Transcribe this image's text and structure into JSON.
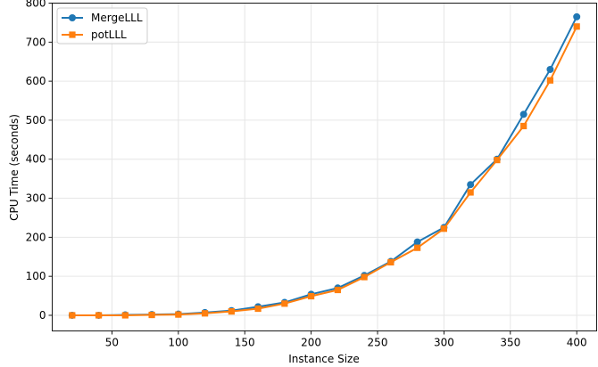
{
  "chart_data": {
    "type": "line",
    "title": "",
    "xlabel": "Instance Size",
    "ylabel": "CPU Time (seconds)",
    "xlim": [
      5,
      415
    ],
    "ylim": [
      -40,
      800
    ],
    "xticks": [
      50,
      100,
      150,
      200,
      250,
      300,
      350,
      400
    ],
    "yticks": [
      0,
      100,
      200,
      300,
      400,
      500,
      600,
      700,
      800
    ],
    "grid": true,
    "legend_position": "top-left",
    "x": [
      20,
      40,
      60,
      80,
      100,
      120,
      140,
      160,
      180,
      200,
      220,
      240,
      260,
      280,
      300,
      320,
      340,
      360,
      380,
      400
    ],
    "series": [
      {
        "name": "MergeLLL",
        "color": "#1f77b4",
        "marker": "circle",
        "values": [
          0,
          0,
          1,
          2,
          3,
          7,
          12,
          22,
          33,
          54,
          70,
          102,
          138,
          188,
          225,
          335,
          400,
          515,
          630,
          765
        ]
      },
      {
        "name": "potLLL",
        "color": "#ff7f0e",
        "marker": "square",
        "values": [
          0,
          0,
          0,
          1,
          2,
          5,
          10,
          17,
          30,
          49,
          65,
          98,
          136,
          173,
          222,
          315,
          398,
          485,
          602,
          740
        ]
      }
    ]
  }
}
